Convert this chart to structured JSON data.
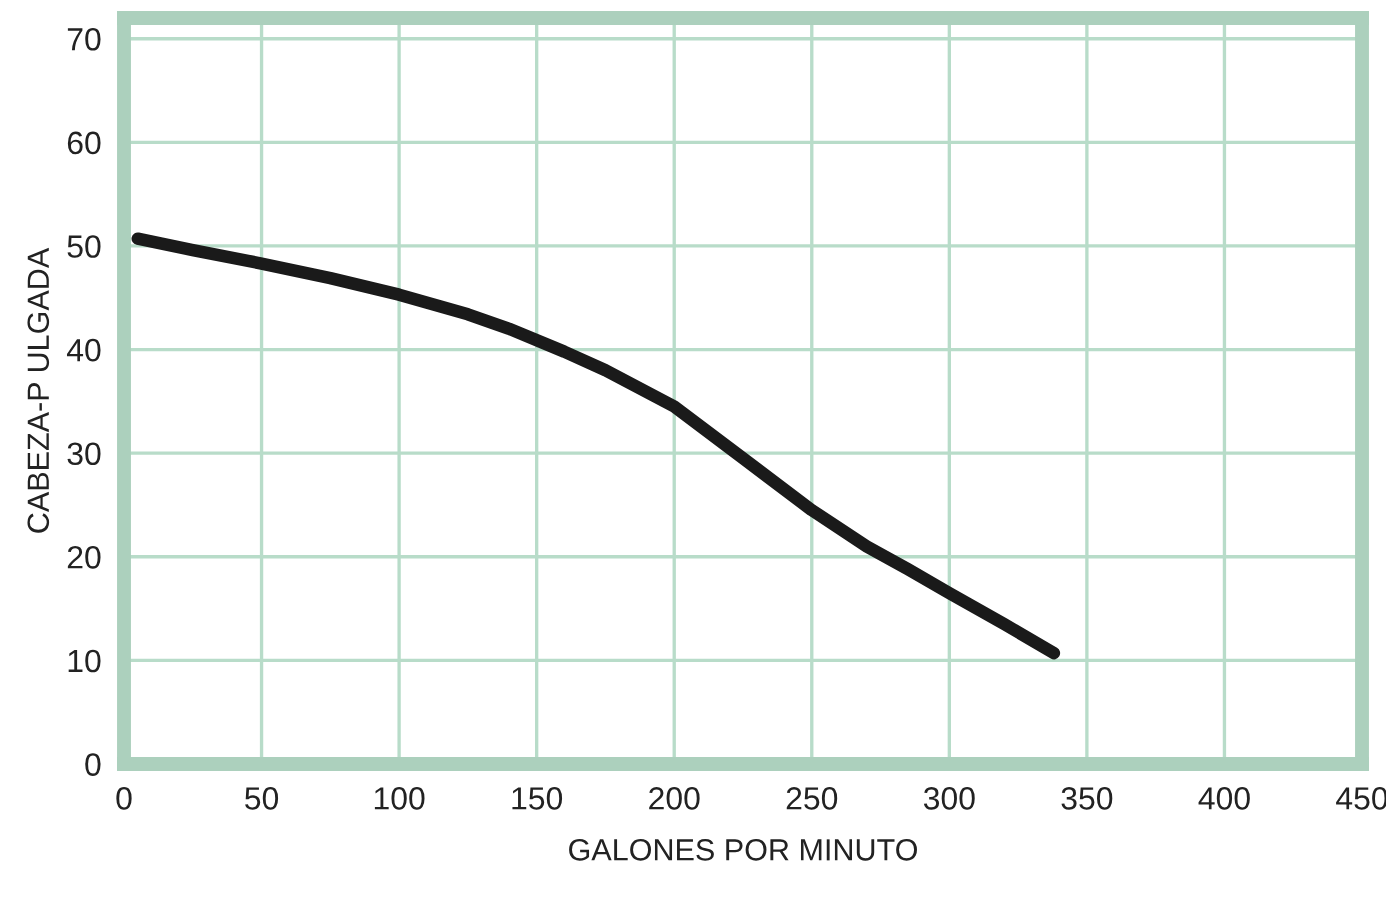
{
  "chart_data": {
    "type": "line",
    "xlabel": "GALONES POR MINUTO",
    "ylabel": "CABEZA-P ULGADA",
    "x": [
      5,
      25,
      50,
      75,
      100,
      125,
      140,
      160,
      175,
      200,
      225,
      250,
      270,
      285,
      300,
      320,
      338
    ],
    "series": [
      {
        "color": "#1a1a1a",
        "values": [
          50.7,
          49.6,
          48.3,
          46.9,
          45.3,
          43.4,
          42,
          39.8,
          38,
          34.5,
          29.5,
          24.5,
          21,
          18.8,
          16.5,
          13.5,
          10.7
        ]
      }
    ],
    "xlim": [
      0,
      450
    ],
    "xticks": [
      0,
      50,
      100,
      150,
      200,
      250,
      300,
      350,
      400,
      450
    ],
    "ylim": [
      0,
      72
    ],
    "yticks": [
      0,
      10,
      20,
      30,
      40,
      50,
      60,
      70
    ],
    "grid": true,
    "marker": "none",
    "line_style": "solid",
    "legend": false
  }
}
